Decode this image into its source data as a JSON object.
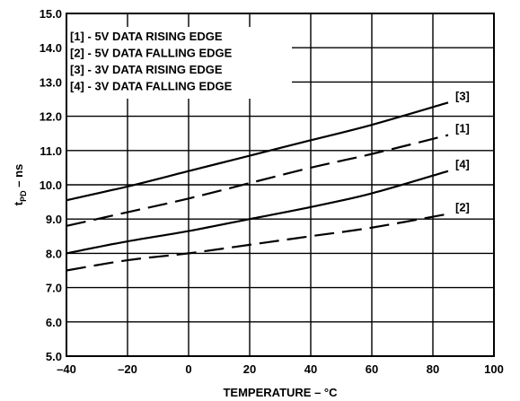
{
  "chart_data": {
    "type": "line",
    "xlabel": "TEMPERATURE – °C",
    "ylabel_main": "t",
    "ylabel_sub": "PD",
    "ylabel_rest": " – ns",
    "xlim": [
      -40,
      100
    ],
    "ylim": [
      5.0,
      15.0
    ],
    "x_ticks": [
      -40,
      -20,
      0,
      20,
      40,
      60,
      80,
      100
    ],
    "x_tick_labels": [
      "–40",
      "–20",
      "0",
      "20",
      "40",
      "60",
      "80",
      "100"
    ],
    "y_ticks": [
      5,
      6,
      7,
      8,
      9,
      10,
      11,
      12,
      13,
      14,
      15
    ],
    "y_tick_labels": [
      "5.0",
      "6.0",
      "7.0",
      "8.0",
      "9.0",
      "10.0",
      "11.0",
      "12.0",
      "13.0",
      "14.0",
      "15.0"
    ],
    "grid": true,
    "legend_entries": [
      "[1] - 5V DATA RISING EDGE",
      "[2] - 5V DATA FALLING EDGE",
      "[3] - 3V DATA RISING EDGE",
      "[4] - 3V DATA FALLING EDGE"
    ],
    "series": [
      {
        "label": "[3]",
        "dashed": false,
        "x": [
          -40,
          -20,
          0,
          20,
          40,
          60,
          85
        ],
        "y": [
          9.55,
          9.95,
          10.4,
          10.85,
          11.3,
          11.75,
          12.4
        ]
      },
      {
        "label": "[1]",
        "dashed": true,
        "x": [
          -40,
          -20,
          0,
          20,
          40,
          60,
          85
        ],
        "y": [
          8.8,
          9.2,
          9.6,
          10.05,
          10.5,
          10.9,
          11.45
        ]
      },
      {
        "label": "[4]",
        "dashed": false,
        "x": [
          -40,
          -20,
          0,
          20,
          40,
          60,
          85
        ],
        "y": [
          8.0,
          8.35,
          8.65,
          9.0,
          9.35,
          9.75,
          10.4
        ]
      },
      {
        "label": "[2]",
        "dashed": true,
        "x": [
          -40,
          -20,
          0,
          20,
          40,
          60,
          85
        ],
        "y": [
          7.5,
          7.8,
          8.0,
          8.25,
          8.5,
          8.75,
          9.15
        ]
      }
    ]
  }
}
